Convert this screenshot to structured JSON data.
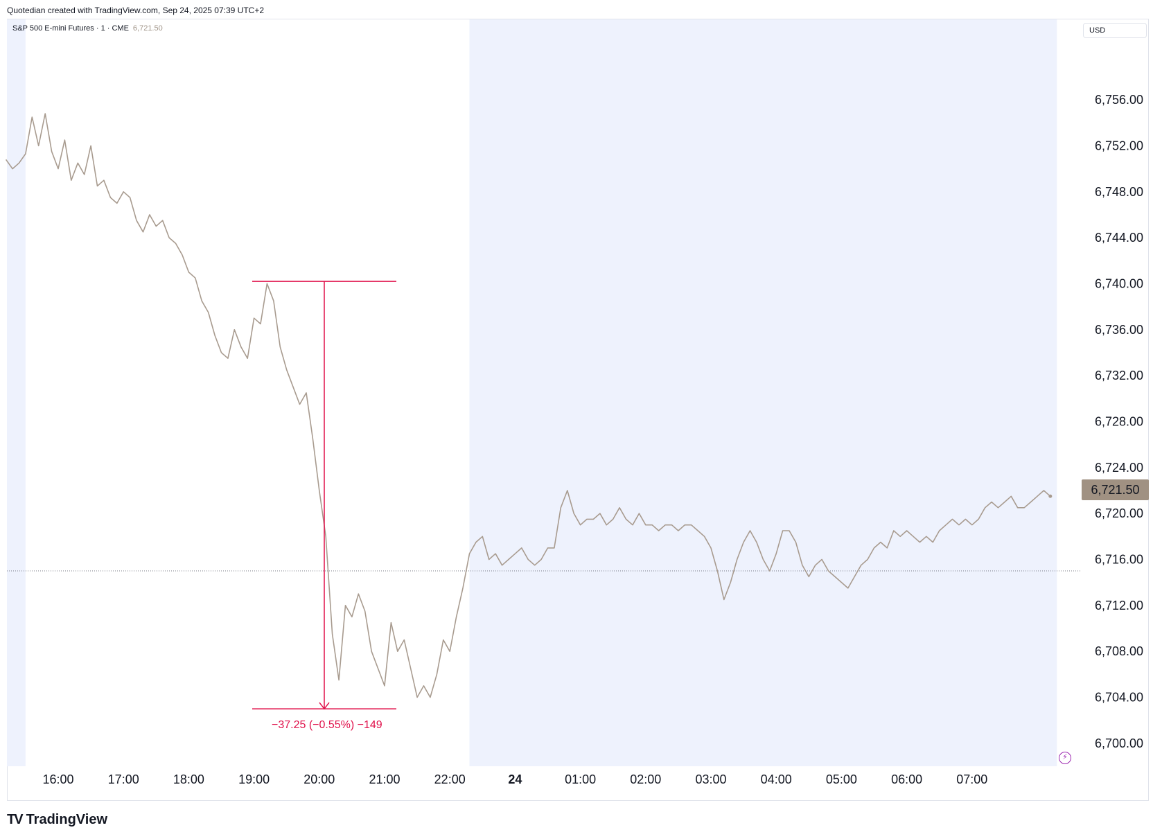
{
  "header": {
    "caption": "Quotedian created with TradingView.com, Sep 24, 2025 07:39 UTC+2"
  },
  "symbol": {
    "name": "S&P 500 E-mini Futures · 1 · CME",
    "last_price_label": "6,721.50"
  },
  "toolbar": {
    "currency_label": "USD"
  },
  "measure": {
    "label": "−37.25 (−0.55%) −149",
    "color": "#e0104a",
    "start_price": 6740.2,
    "end_price": 6703.0
  },
  "footer": {
    "brand": "TradingView",
    "mark": "TV"
  },
  "icons": {
    "lightning": "lightning-icon"
  },
  "colors": {
    "line": "#a89b8f",
    "session_shade": "#eef2fd",
    "badge": "#a09182",
    "measure": "#e0104a",
    "grid": "#e0e3eb"
  },
  "chart_data": {
    "type": "line",
    "title": "S&P 500 E-mini Futures · 1 · CME",
    "xlabel": "",
    "ylabel": "",
    "x_tick_labels": [
      "16:00",
      "17:00",
      "18:00",
      "19:00",
      "20:00",
      "21:00",
      "22:00",
      "24",
      "01:00",
      "02:00",
      "03:00",
      "04:00",
      "05:00",
      "06:00",
      "07:00"
    ],
    "y_tick_labels": [
      "6,756.00",
      "6,752.00",
      "6,748.00",
      "6,744.00",
      "6,740.00",
      "6,736.00",
      "6,732.00",
      "6,728.00",
      "6,724.00",
      "6,720.00",
      "6,716.00",
      "6,712.00",
      "6,708.00",
      "6,704.00",
      "6,700.00"
    ],
    "ylim": [
      6698,
      6763
    ],
    "x_unit": "hours from 16:00 on Sep 23",
    "xlim": [
      -0.8,
      15.5
    ],
    "last_price": 6721.5,
    "reference_line": 6715.0,
    "session_shading": [
      [
        -0.8,
        -0.5
      ],
      [
        6.3,
        15.3
      ]
    ],
    "series": [
      {
        "values": [
          [
            -0.8,
            6750.8
          ],
          [
            -0.7,
            6750.0
          ],
          [
            -0.6,
            6750.5
          ],
          [
            -0.5,
            6751.3
          ],
          [
            -0.4,
            6754.5
          ],
          [
            -0.3,
            6752.0
          ],
          [
            -0.2,
            6754.8
          ],
          [
            -0.1,
            6751.5
          ],
          [
            0.0,
            6750.0
          ],
          [
            0.1,
            6752.5
          ],
          [
            0.2,
            6749.0
          ],
          [
            0.3,
            6750.5
          ],
          [
            0.4,
            6749.5
          ],
          [
            0.5,
            6752.0
          ],
          [
            0.6,
            6748.5
          ],
          [
            0.7,
            6749.0
          ],
          [
            0.8,
            6747.5
          ],
          [
            0.9,
            6747.0
          ],
          [
            1.0,
            6748.0
          ],
          [
            1.1,
            6747.5
          ],
          [
            1.2,
            6745.5
          ],
          [
            1.3,
            6744.5
          ],
          [
            1.4,
            6746.0
          ],
          [
            1.5,
            6745.0
          ],
          [
            1.6,
            6745.5
          ],
          [
            1.7,
            6744.0
          ],
          [
            1.8,
            6743.5
          ],
          [
            1.9,
            6742.5
          ],
          [
            2.0,
            6741.0
          ],
          [
            2.1,
            6740.5
          ],
          [
            2.2,
            6738.5
          ],
          [
            2.3,
            6737.5
          ],
          [
            2.4,
            6735.5
          ],
          [
            2.5,
            6734.0
          ],
          [
            2.6,
            6733.5
          ],
          [
            2.7,
            6736.0
          ],
          [
            2.8,
            6734.5
          ],
          [
            2.9,
            6733.5
          ],
          [
            3.0,
            6737.0
          ],
          [
            3.1,
            6736.5
          ],
          [
            3.2,
            6740.0
          ],
          [
            3.3,
            6738.5
          ],
          [
            3.4,
            6734.5
          ],
          [
            3.5,
            6732.5
          ],
          [
            3.6,
            6731.0
          ],
          [
            3.7,
            6729.5
          ],
          [
            3.8,
            6730.5
          ],
          [
            3.9,
            6726.5
          ],
          [
            4.0,
            6722.0
          ],
          [
            4.1,
            6718.0
          ],
          [
            4.2,
            6709.5
          ],
          [
            4.3,
            6705.5
          ],
          [
            4.4,
            6712.0
          ],
          [
            4.5,
            6711.0
          ],
          [
            4.6,
            6713.0
          ],
          [
            4.7,
            6711.5
          ],
          [
            4.8,
            6708.0
          ],
          [
            4.9,
            6706.5
          ],
          [
            5.0,
            6705.0
          ],
          [
            5.1,
            6710.5
          ],
          [
            5.2,
            6708.0
          ],
          [
            5.3,
            6709.0
          ],
          [
            5.4,
            6706.5
          ],
          [
            5.5,
            6704.0
          ],
          [
            5.6,
            6705.0
          ],
          [
            5.7,
            6704.0
          ],
          [
            5.8,
            6706.0
          ],
          [
            5.9,
            6709.0
          ],
          [
            6.0,
            6708.0
          ],
          [
            6.1,
            6711.0
          ],
          [
            6.2,
            6713.5
          ],
          [
            6.3,
            6716.5
          ],
          [
            6.4,
            6717.5
          ],
          [
            6.5,
            6718.0
          ],
          [
            6.6,
            6716.0
          ],
          [
            6.7,
            6716.5
          ],
          [
            6.8,
            6715.5
          ],
          [
            6.9,
            6716.0
          ],
          [
            7.0,
            6716.5
          ],
          [
            7.1,
            6717.0
          ],
          [
            7.2,
            6716.0
          ],
          [
            7.3,
            6715.5
          ],
          [
            7.4,
            6716.0
          ],
          [
            7.5,
            6717.0
          ],
          [
            7.6,
            6717.0
          ],
          [
            7.7,
            6720.5
          ],
          [
            7.8,
            6722.0
          ],
          [
            7.9,
            6720.0
          ],
          [
            8.0,
            6719.0
          ],
          [
            8.1,
            6719.5
          ],
          [
            8.2,
            6719.5
          ],
          [
            8.3,
            6720.0
          ],
          [
            8.4,
            6719.0
          ],
          [
            8.5,
            6719.5
          ],
          [
            8.6,
            6720.5
          ],
          [
            8.7,
            6719.5
          ],
          [
            8.8,
            6719.0
          ],
          [
            8.9,
            6720.0
          ],
          [
            9.0,
            6719.0
          ],
          [
            9.1,
            6719.0
          ],
          [
            9.2,
            6718.5
          ],
          [
            9.3,
            6719.0
          ],
          [
            9.4,
            6719.0
          ],
          [
            9.5,
            6718.5
          ],
          [
            9.6,
            6719.0
          ],
          [
            9.7,
            6719.0
          ],
          [
            9.8,
            6718.5
          ],
          [
            9.9,
            6718.0
          ],
          [
            10.0,
            6717.0
          ],
          [
            10.1,
            6715.0
          ],
          [
            10.2,
            6712.5
          ],
          [
            10.3,
            6714.0
          ],
          [
            10.4,
            6716.0
          ],
          [
            10.5,
            6717.5
          ],
          [
            10.6,
            6718.5
          ],
          [
            10.7,
            6717.5
          ],
          [
            10.8,
            6716.0
          ],
          [
            10.9,
            6715.0
          ],
          [
            11.0,
            6716.5
          ],
          [
            11.1,
            6718.5
          ],
          [
            11.2,
            6718.5
          ],
          [
            11.3,
            6717.5
          ],
          [
            11.4,
            6715.5
          ],
          [
            11.5,
            6714.5
          ],
          [
            11.6,
            6715.5
          ],
          [
            11.7,
            6716.0
          ],
          [
            11.8,
            6715.0
          ],
          [
            11.9,
            6714.5
          ],
          [
            12.0,
            6714.0
          ],
          [
            12.1,
            6713.5
          ],
          [
            12.2,
            6714.5
          ],
          [
            12.3,
            6715.5
          ],
          [
            12.4,
            6716.0
          ],
          [
            12.5,
            6717.0
          ],
          [
            12.6,
            6717.5
          ],
          [
            12.7,
            6717.0
          ],
          [
            12.8,
            6718.5
          ],
          [
            12.9,
            6718.0
          ],
          [
            13.0,
            6718.5
          ],
          [
            13.1,
            6718.0
          ],
          [
            13.2,
            6717.5
          ],
          [
            13.3,
            6718.0
          ],
          [
            13.4,
            6717.5
          ],
          [
            13.5,
            6718.5
          ],
          [
            13.6,
            6719.0
          ],
          [
            13.7,
            6719.5
          ],
          [
            13.8,
            6719.0
          ],
          [
            13.9,
            6719.5
          ],
          [
            14.0,
            6719.0
          ],
          [
            14.1,
            6719.5
          ],
          [
            14.2,
            6720.5
          ],
          [
            14.3,
            6721.0
          ],
          [
            14.4,
            6720.5
          ],
          [
            14.5,
            6721.0
          ],
          [
            14.6,
            6721.5
          ],
          [
            14.7,
            6720.5
          ],
          [
            14.8,
            6720.5
          ],
          [
            14.9,
            6721.0
          ],
          [
            15.0,
            6721.5
          ],
          [
            15.1,
            6722.0
          ],
          [
            15.2,
            6721.5
          ]
        ]
      }
    ]
  }
}
